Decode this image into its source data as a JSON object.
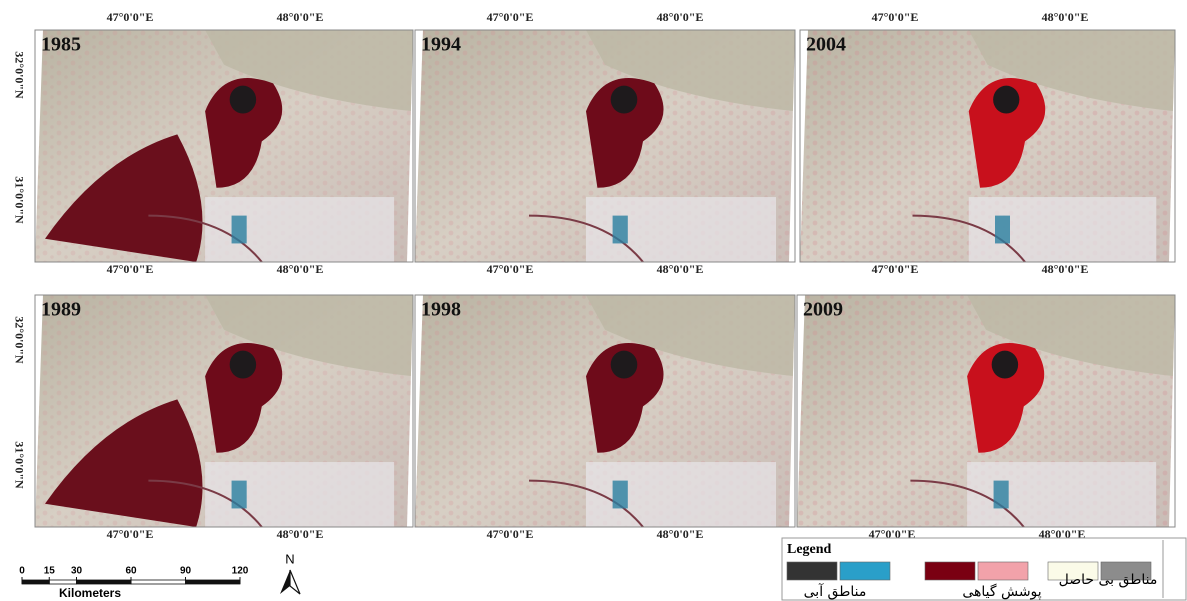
{
  "panels": [
    {
      "year": "1985",
      "top_labels": [
        "47°0'0\"E",
        "48°0'0\"E"
      ],
      "bottom_labels": [
        "47°0'0\"E",
        "48°0'0\"E"
      ],
      "left_labels": [
        "32°0'0\"N",
        "31°0'0\"N"
      ]
    },
    {
      "year": "1994",
      "top_labels": [
        "47°0'0\"E",
        "48°0'0\"E"
      ],
      "bottom_labels": [
        "47°0'0\"E",
        "48°0'0\"E"
      ]
    },
    {
      "year": "2004",
      "top_labels": [
        "47°0'0\"E",
        "48°0'0\"E"
      ],
      "bottom_labels": [
        "47°0'0\"E",
        "48°0'0\"E"
      ]
    },
    {
      "year": "1989",
      "bottom_labels": [
        "47°0'0\"E",
        "48°0'0\"E"
      ],
      "left_labels": [
        "32°0'0\"N",
        "31°0'0\"N"
      ]
    },
    {
      "year": "1998",
      "bottom_labels": [
        "47°0'0\"E",
        "48°0'0\"E"
      ]
    },
    {
      "year": "2009",
      "bottom_labels": [
        "47°0'0\"E",
        "48°0'0\"E"
      ]
    }
  ],
  "scale_bar": {
    "ticks": [
      0,
      15,
      30,
      60,
      90,
      120
    ],
    "unit": "Kilometers"
  },
  "north": "N",
  "legend": {
    "title": "Legend",
    "entries": [
      {
        "label": "مناطق آبی",
        "colors": [
          "#333333",
          "#2a9fc9"
        ]
      },
      {
        "label": "پوشش گیاهی",
        "colors": [
          "#7a0012",
          "#f2a2aa"
        ]
      },
      {
        "label": "مناطق بی حاصل",
        "colors": [
          "#fbfbe8",
          "#8c8c8c"
        ]
      }
    ]
  }
}
